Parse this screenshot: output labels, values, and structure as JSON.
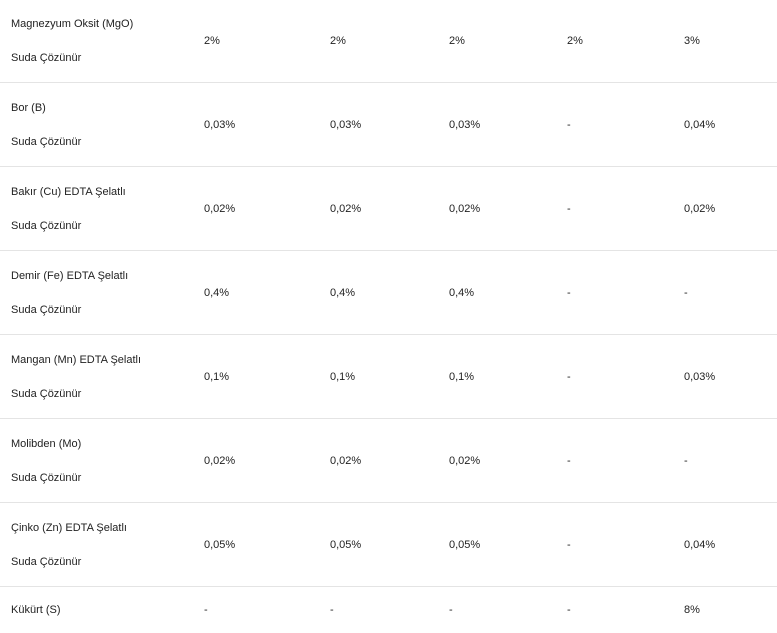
{
  "table": {
    "rows": [
      {
        "name": "Magnezyum Oksit (MgO)",
        "sub": "Suda Çözünür",
        "values": [
          "2%",
          "2%",
          "2%",
          "2%",
          "3%"
        ]
      },
      {
        "name": "Bor (B)",
        "sub": "Suda Çözünür",
        "values": [
          "0,03%",
          "0,03%",
          "0,03%",
          "-",
          "0,04%"
        ]
      },
      {
        "name": "Bakır (Cu) EDTA Şelatlı",
        "sub": "Suda Çözünür",
        "values": [
          "0,02%",
          "0,02%",
          "0,02%",
          "-",
          "0,02%"
        ]
      },
      {
        "name": "Demir (Fe) EDTA Şelatlı",
        "sub": "Suda Çözünür",
        "values": [
          "0,4%",
          "0,4%",
          "0,4%",
          "-",
          "-"
        ]
      },
      {
        "name": "Mangan (Mn) EDTA Şelatlı",
        "sub": "Suda Çözünür",
        "values": [
          "0,1%",
          "0,1%",
          "0,1%",
          "-",
          "0,03%"
        ]
      },
      {
        "name": "Molibden (Mo)",
        "sub": "Suda Çözünür",
        "values": [
          "0,02%",
          "0,02%",
          "0,02%",
          "-",
          "-"
        ]
      },
      {
        "name": "Çinko (Zn) EDTA Şelatlı",
        "sub": "Suda Çözünür",
        "values": [
          "0,05%",
          "0,05%",
          "0,05%",
          "-",
          "0,04%"
        ]
      },
      {
        "name": "Kükürt (S)",
        "sub": "",
        "values": [
          "-",
          "-",
          "-",
          "-",
          "8%"
        ]
      }
    ]
  }
}
